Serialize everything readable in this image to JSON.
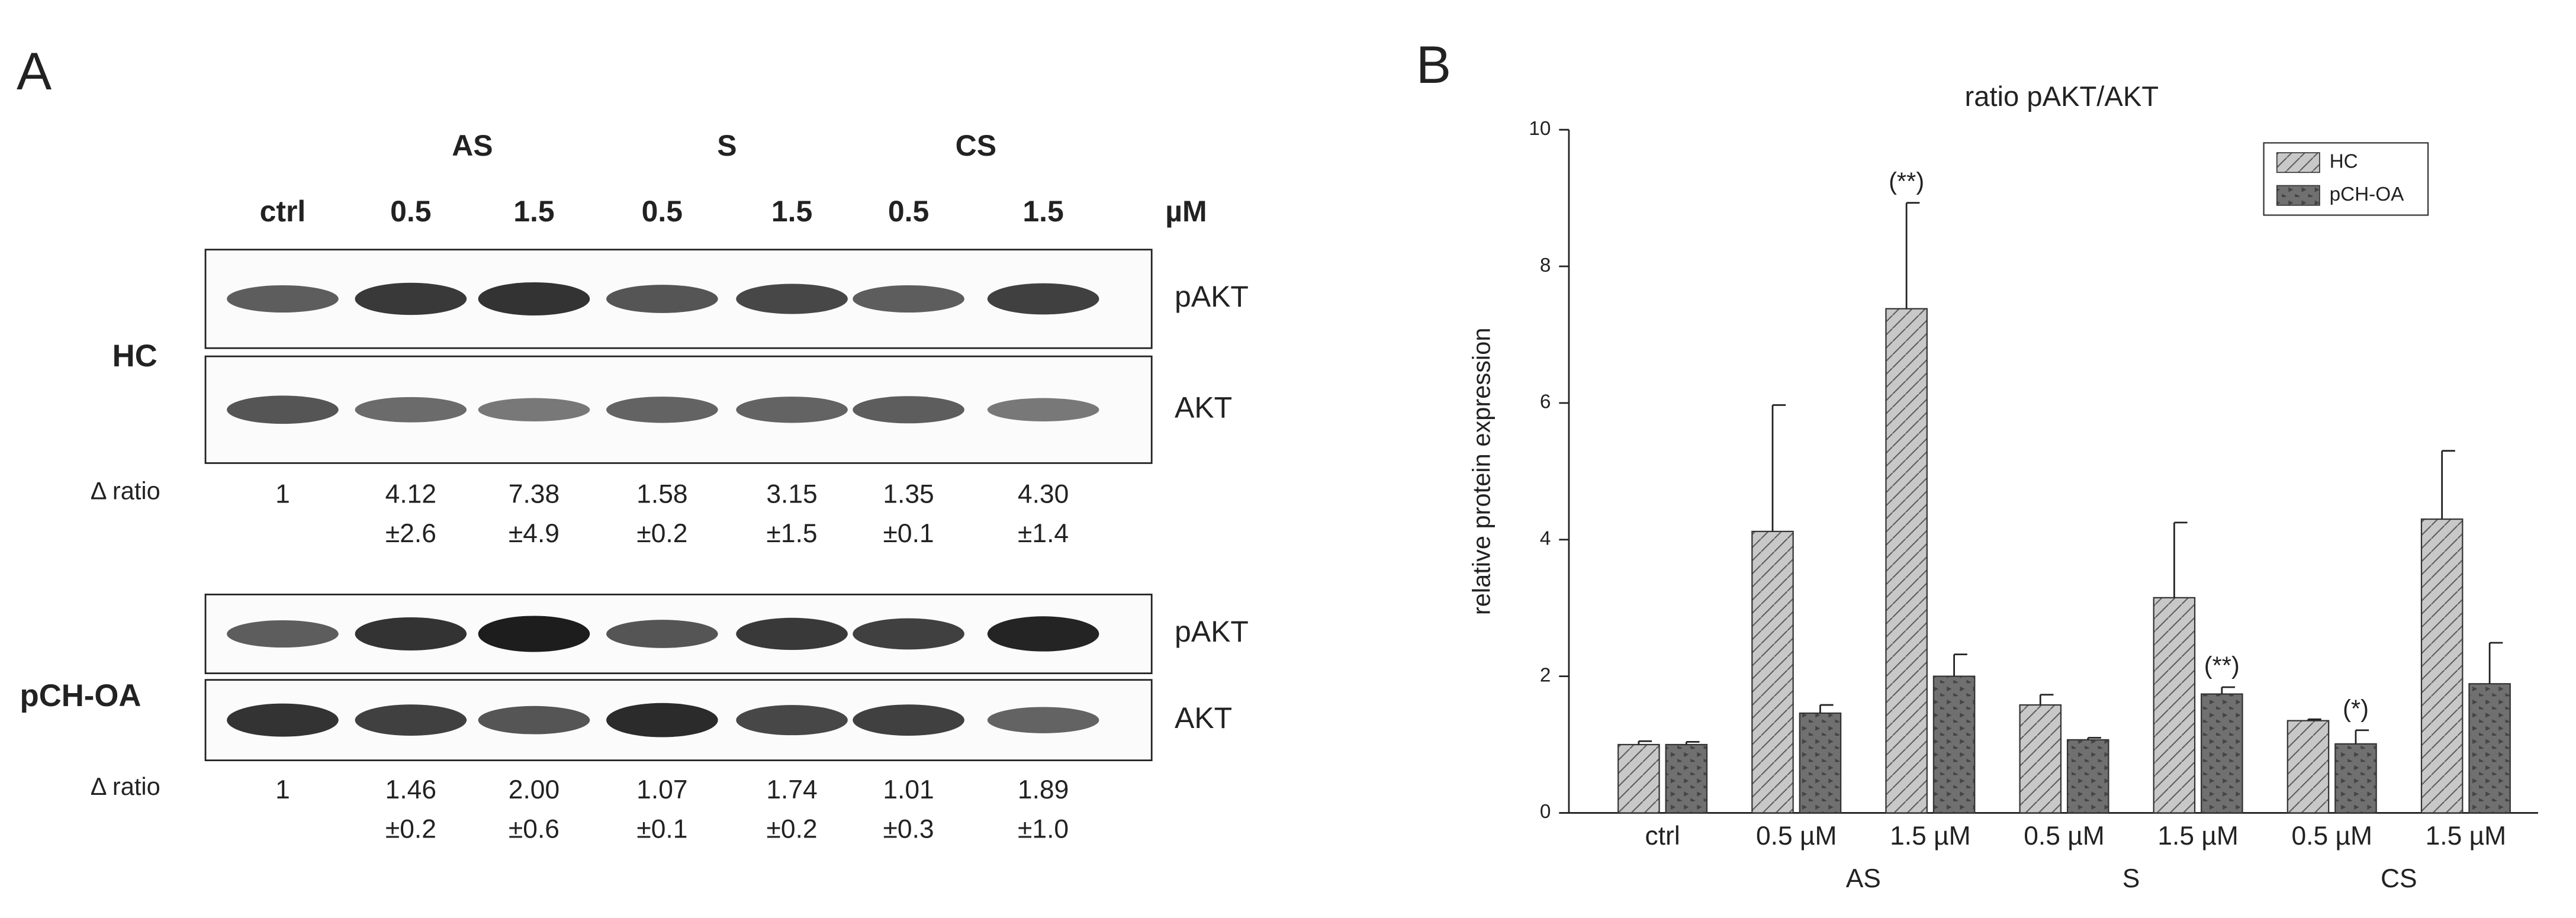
{
  "panel_a": {
    "label": "A",
    "groups": [
      "AS",
      "S",
      "CS"
    ],
    "columns": [
      "ctrl",
      "0.5",
      "1.5",
      "0.5",
      "1.5",
      "0.5",
      "1.5"
    ],
    "unit": "µM",
    "rows": [
      {
        "label": "HC",
        "bands": [
          "pAKT",
          "AKT"
        ],
        "ratio_label": "Δ ratio",
        "ratios": [
          "1",
          "4.12",
          "7.38",
          "1.58",
          "3.15",
          "1.35",
          "4.30"
        ],
        "sds": [
          null,
          "±2.6",
          "±4.9",
          "±0.2",
          "±1.5",
          "±0.1",
          "±1.4"
        ]
      },
      {
        "label": "pCH-OA",
        "bands": [
          "pAKT",
          "AKT"
        ],
        "ratio_label": "Δ ratio",
        "ratios": [
          "1",
          "1.46",
          "2.00",
          "1.07",
          "1.74",
          "1.01",
          "1.89"
        ],
        "sds": [
          null,
          "±0.2",
          "±0.6",
          "±0.1",
          "±0.2",
          "±0.3",
          "±1.0"
        ]
      }
    ]
  },
  "chart_data": {
    "type": "bar",
    "panel_label": "B",
    "title": "ratio pAKT/AKT",
    "y_label": "relative protein expression",
    "categories": [
      "ctrl",
      "0.5 µM",
      "1.5 µM",
      "0.5 µM",
      "1.5 µM",
      "0.5 µM",
      "1.5 µM"
    ],
    "groups": [
      {
        "label": "AS",
        "categories": [
          1,
          2
        ]
      },
      {
        "label": "S",
        "categories": [
          3,
          4
        ]
      },
      {
        "label": "CS",
        "categories": [
          5,
          6
        ]
      }
    ],
    "series": [
      {
        "name": "HC",
        "color": "#c8c8c8",
        "pattern": "hatch",
        "values": [
          1.0,
          4.12,
          7.38,
          1.58,
          3.15,
          1.35,
          4.3
        ],
        "errors": [
          0.05,
          1.85,
          1.55,
          0.15,
          1.1,
          0.02,
          1.0
        ],
        "annotations": [
          null,
          null,
          "(**)",
          null,
          null,
          null,
          null
        ]
      },
      {
        "name": "pCH-OA",
        "color": "#707070",
        "pattern": "dots",
        "values": [
          1.0,
          1.46,
          2.0,
          1.07,
          1.74,
          1.01,
          1.89
        ],
        "errors": [
          0.04,
          0.12,
          0.32,
          0.03,
          0.1,
          0.2,
          0.6
        ],
        "annotations": [
          null,
          null,
          null,
          null,
          "(**)",
          "(*)",
          null
        ]
      }
    ],
    "ylim": [
      0,
      10
    ],
    "yticks": [
      0,
      2,
      4,
      6,
      8,
      10
    ],
    "legend": "upper right",
    "grid": false
  }
}
